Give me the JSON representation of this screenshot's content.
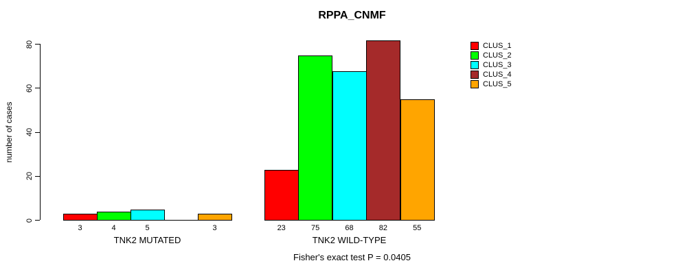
{
  "title": "RPPA_CNMF",
  "ylabel": "number of cases",
  "footer": "Fisher's exact test P = 0.0405",
  "chart_data": {
    "type": "bar",
    "title": "RPPA_CNMF",
    "xlabel": "",
    "ylabel": "number of cases",
    "ylim": [
      0,
      80
    ],
    "yticks": [
      0,
      20,
      40,
      60,
      80
    ],
    "grid": false,
    "legend_position": "top-right",
    "categories": [
      "TNK2 MUTATED",
      "TNK2 WILD-TYPE"
    ],
    "series": [
      {
        "name": "CLUS_1",
        "color": "#FF0000",
        "values": [
          3,
          23
        ]
      },
      {
        "name": "CLUS_2",
        "color": "#00FF00",
        "values": [
          4,
          75
        ]
      },
      {
        "name": "CLUS_3",
        "color": "#00FFFF",
        "values": [
          5,
          68
        ]
      },
      {
        "name": "CLUS_4",
        "color": "#A52A2A",
        "values": [
          0,
          82
        ]
      },
      {
        "name": "CLUS_5",
        "color": "#FFA500",
        "values": [
          3,
          55
        ]
      }
    ],
    "bar_labels": [
      [
        "3",
        "4",
        "5",
        "",
        "3"
      ],
      [
        "23",
        "75",
        "68",
        "82",
        "55"
      ]
    ],
    "annotation": "Fisher's exact test P = 0.0405"
  }
}
